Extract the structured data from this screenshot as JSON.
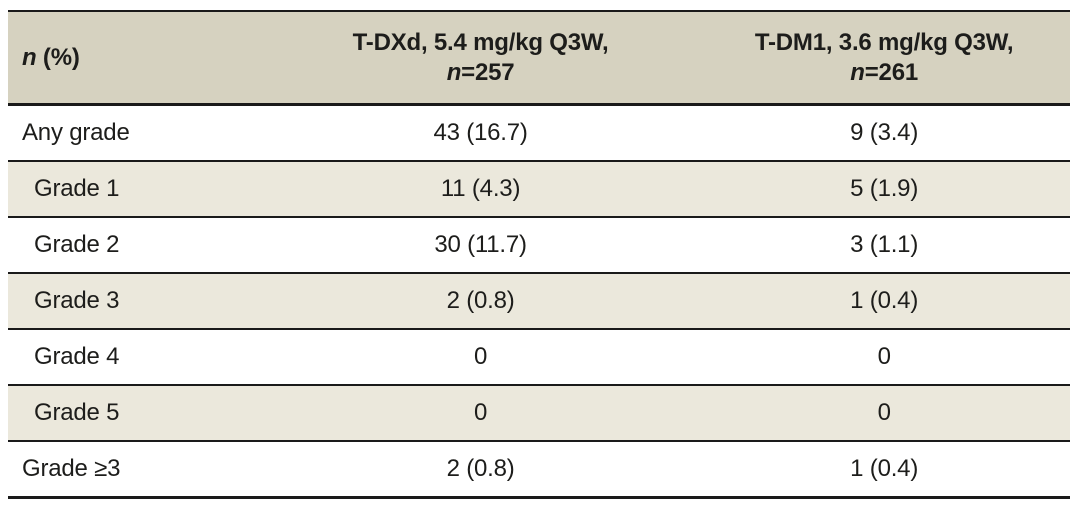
{
  "table": {
    "header": {
      "col1": {
        "n": "n",
        "rest": " (%)"
      },
      "col2": {
        "line1": "T-DXd, 5.4 mg/kg Q3W,",
        "n": "n",
        "value": "=257"
      },
      "col3": {
        "line1": "T-DM1, 3.6 mg/kg Q3W,",
        "n": "n",
        "value": "=261"
      }
    },
    "rows": [
      {
        "label": "Any grade",
        "indent": false,
        "shaded": false,
        "tdxd": "43 (16.7)",
        "tdm1": "9 (3.4)"
      },
      {
        "label": "Grade 1",
        "indent": true,
        "shaded": true,
        "tdxd": "11 (4.3)",
        "tdm1": "5 (1.9)"
      },
      {
        "label": "Grade 2",
        "indent": true,
        "shaded": false,
        "tdxd": "30 (11.7)",
        "tdm1": "3 (1.1)"
      },
      {
        "label": "Grade 3",
        "indent": true,
        "shaded": true,
        "tdxd": "2 (0.8)",
        "tdm1": "1 (0.4)"
      },
      {
        "label": "Grade 4",
        "indent": true,
        "shaded": false,
        "tdxd": "0",
        "tdm1": "0"
      },
      {
        "label": "Grade 5",
        "indent": true,
        "shaded": true,
        "tdxd": "0",
        "tdm1": "0"
      },
      {
        "label": "Grade ≥3",
        "indent": false,
        "shaded": false,
        "tdxd": "2 (0.8)",
        "tdm1": "1 (0.4)"
      }
    ]
  },
  "colors": {
    "header_bg": "#d6d2c0",
    "shaded_row_bg": "#ebe8dc",
    "plain_row_bg": "#ffffff",
    "rule": "#1a1a1a",
    "text": "#1d1d1b"
  },
  "chart_data": {
    "type": "table",
    "title": "",
    "columns": [
      "n (%)",
      "T-DXd, 5.4 mg/kg Q3W, n=257",
      "T-DM1, 3.6 mg/kg Q3W, n=261"
    ],
    "rows": [
      [
        "Any grade",
        "43 (16.7)",
        "9 (3.4)"
      ],
      [
        "Grade 1",
        "11 (4.3)",
        "5 (1.9)"
      ],
      [
        "Grade 2",
        "30 (11.7)",
        "3 (1.1)"
      ],
      [
        "Grade 3",
        "2 (0.8)",
        "1 (0.4)"
      ],
      [
        "Grade 4",
        "0",
        "0"
      ],
      [
        "Grade 5",
        "0",
        "0"
      ],
      [
        "Grade ≥3",
        "2 (0.8)",
        "1 (0.4)"
      ]
    ]
  }
}
